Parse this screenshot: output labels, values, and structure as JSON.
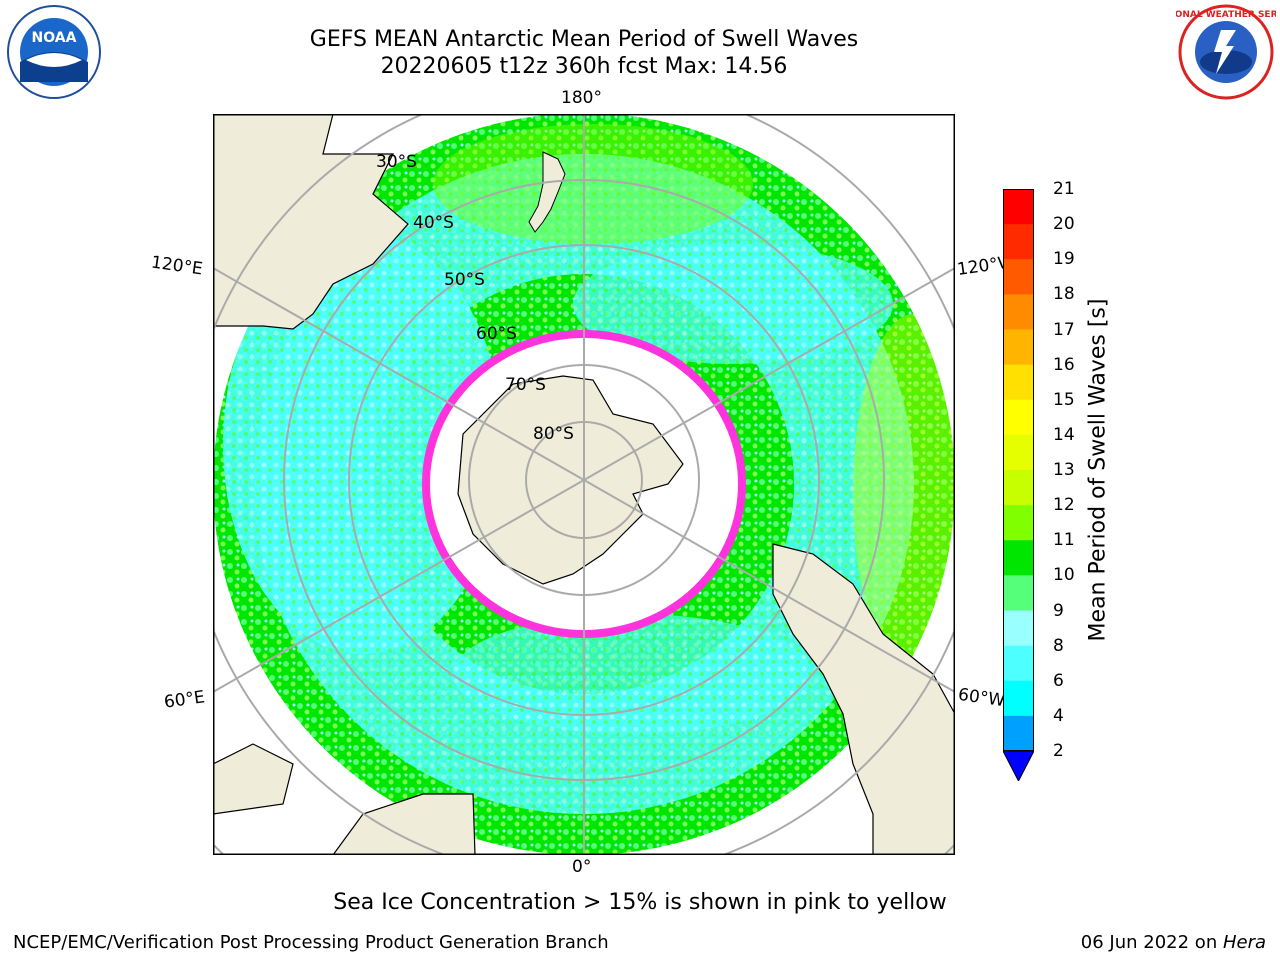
{
  "header": {
    "title_line1": "GEFS MEAN Antarctic Mean Period of Swell Waves",
    "title_line2": "20220605 t12z 360h fcst   Max: 14.56"
  },
  "logos": {
    "left": "noara-seal-icon",
    "left_text": "NOAA",
    "right": "nws-seal-icon",
    "right_text": "NATIONAL WEATHER SERVICE"
  },
  "map": {
    "projection": "south-polar-stereographic",
    "longitude_labels": {
      "top": "180°",
      "bottom": "0°",
      "upper_left": "120°E",
      "upper_right": "120°W",
      "lower_left": "60°E",
      "lower_right": "60°W"
    },
    "latitude_labels": [
      "30°S",
      "40°S",
      "50°S",
      "60°S",
      "70°S",
      "80°S"
    ],
    "colors": {
      "land": "#efedd9",
      "ocean_low": "#47ffff",
      "ocean_mid": "#00ee00",
      "ocean_high": "#5aff7d",
      "ice_edge": "#ff33dd",
      "ice": "#ffffff"
    }
  },
  "colorbar": {
    "label": "Mean Period of Swell Waves [s]",
    "ticks": [
      "21",
      "20",
      "19",
      "18",
      "17",
      "16",
      "15",
      "14",
      "13",
      "12",
      "11",
      "10",
      "9",
      "8",
      "6",
      "4",
      "2"
    ],
    "colors": [
      "#ff0000",
      "#ff2a00",
      "#ff5a00",
      "#ff8c00",
      "#ffb400",
      "#ffe000",
      "#ffff00",
      "#e6ff00",
      "#c8ff00",
      "#7fff00",
      "#00e600",
      "#55ff7a",
      "#99ffff",
      "#4dffff",
      "#00ffff",
      "#00a0ff",
      "#0000ff"
    ]
  },
  "note": "Sea Ice Concentration > 15% is shown in pink to yellow",
  "footer": {
    "left": "NCEP/EMC/Verification Post Processing Product Generation Branch",
    "right_date": "06 Jun 2022 on ",
    "right_host": "Hera"
  }
}
